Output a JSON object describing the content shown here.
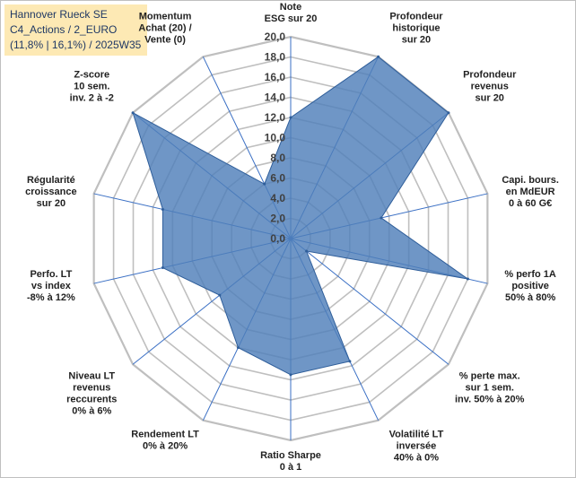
{
  "title": {
    "line1": "Hannover Rueck SE",
    "line2": "C4_Actions / 2_EURO",
    "line3": "(11,8% | 16,1%) / 2025W35"
  },
  "chart_data": {
    "type": "radar",
    "r_range": [
      0,
      20
    ],
    "grid": true,
    "ticks": [
      "0,0",
      "2,0",
      "4,0",
      "6,0",
      "8,0",
      "10,0",
      "12,0",
      "14,0",
      "16,0",
      "18,0",
      "20,0"
    ],
    "axes": [
      [
        "Note",
        "ESG sur 20"
      ],
      [
        "Profondeur",
        "historique",
        "sur 20"
      ],
      [
        "Profondeur",
        "revenus",
        "sur 20"
      ],
      [
        "Capi. bours.",
        "en MdEUR",
        "0 à 60 G€"
      ],
      [
        "% perfo 1A",
        "positive",
        "50% à 80%"
      ],
      [
        "% perte max.",
        "sur 1 sem.",
        "inv. 50% à 20%"
      ],
      [
        "Volatilité LT",
        "inversée",
        "40% à 0%"
      ],
      [
        "Ratio Sharpe",
        "0 à 1"
      ],
      [
        "Rendement LT",
        "0% à 20%"
      ],
      [
        "Niveau LT",
        "revenus",
        "reccurents",
        "0% à 6%"
      ],
      [
        "Perfo. LT",
        "vs index",
        "-8% à 12%"
      ],
      [
        "Régularité",
        "croissance",
        "sur 20"
      ],
      [
        "Z-score",
        "10 sem.",
        "inv. 2 à -2"
      ],
      [
        "Momentum",
        "Achat (20) /",
        "Vente (0)"
      ]
    ],
    "values": [
      12,
      20,
      20,
      9.2,
      18,
      2,
      13.5,
      13.5,
      12,
      9,
      13,
      13,
      20,
      6
    ],
    "colors": {
      "fill": "#4f7fb9",
      "stroke": "#2f5e9a",
      "grid": "#bfbfbf",
      "spoke": "#3a6fc4"
    }
  }
}
